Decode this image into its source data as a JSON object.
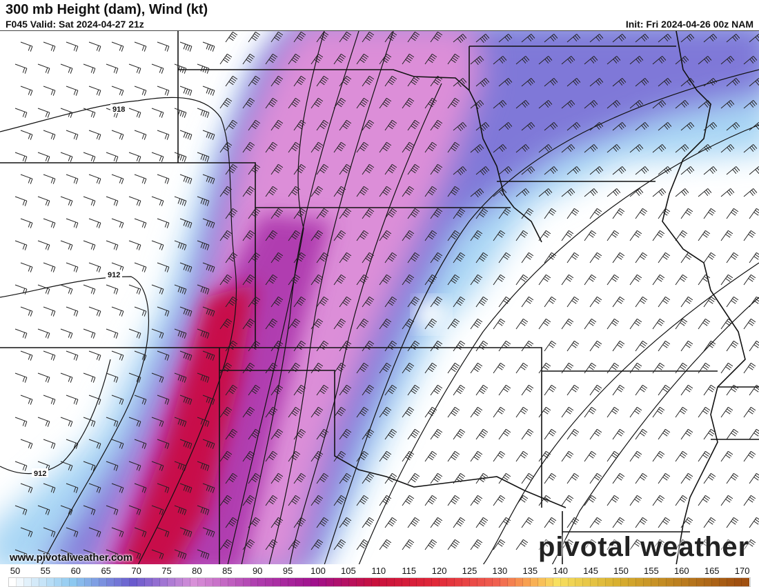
{
  "header": {
    "title": "300 mb Height (dam), Wind (kt)",
    "valid": "F045 Valid: Sat 2024-04-27 21z",
    "init": "Init: Fri 2024-04-26 00z NAM"
  },
  "map": {
    "contour_labels": [
      "918",
      "912",
      "912"
    ],
    "watermark": "www.pivotalweather.com",
    "logo": "pivotal weather"
  },
  "colorbar": {
    "units": "kt",
    "ticks": [
      "50",
      "55",
      "60",
      "65",
      "70",
      "75",
      "80",
      "85",
      "90",
      "95",
      "100",
      "105",
      "110",
      "115",
      "120",
      "125",
      "130",
      "135",
      "140",
      "145",
      "150",
      "155",
      "160",
      "165",
      "170"
    ],
    "colors": {
      "50": "#ffffff",
      "60": "#8cc8f0",
      "70": "#6a5acd",
      "80": "#d890d8",
      "90": "#b040b0",
      "100": "#a0108c",
      "110": "#c8103c",
      "120": "#e02838",
      "130": "#f06050",
      "135": "#f8a050",
      "140": "#f8e060",
      "150": "#d8b030",
      "170": "#a05010"
    }
  }
}
